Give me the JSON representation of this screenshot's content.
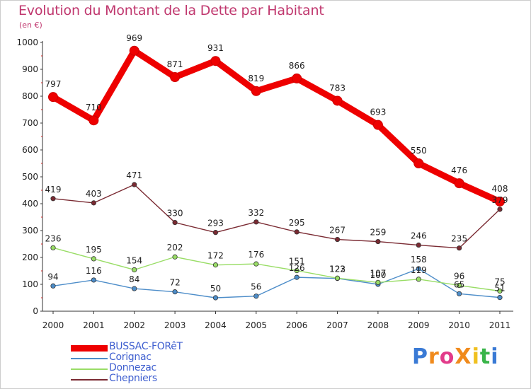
{
  "title": "Evolution du Montant de la Dette par Habitant",
  "subtitle": "(en €)",
  "logo": {
    "text": "ProXiti",
    "letters": [
      "P",
      "r",
      "o",
      "X",
      "i",
      "t",
      "i"
    ],
    "colors": [
      "#3a7ad5",
      "#f08a1c",
      "#e23b8a",
      "#f08a1c",
      "#f0c020",
      "#3ab54a",
      "#3a7ad5"
    ]
  },
  "chart_data": {
    "type": "line",
    "title": "Evolution du Montant de la Dette par Habitant",
    "ylabel": "(en €)",
    "xlabel": "",
    "x": [
      "2000",
      "2001",
      "2002",
      "2003",
      "2004",
      "2005",
      "2006",
      "2007",
      "2008",
      "2009",
      "2010",
      "2011"
    ],
    "ylim": [
      0,
      1000
    ],
    "yticks": [
      "0",
      "100",
      "200",
      "300",
      "400",
      "500",
      "600",
      "700",
      "800",
      "900",
      "1000"
    ],
    "grid": false,
    "legend_position": "bottom-left",
    "series": [
      {
        "name": "BUSSAC-FORêT",
        "color": "#ee0000",
        "values": [
          797,
          710,
          969,
          871,
          931,
          819,
          866,
          783,
          693,
          550,
          476,
          408
        ],
        "labels": [
          "797",
          "710",
          "969",
          "871",
          "931",
          "819",
          "866",
          "783",
          "693",
          "550",
          "476",
          "408"
        ]
      },
      {
        "name": "Corignac",
        "color": "#4d8dc9",
        "values": [
          94,
          116,
          84,
          72,
          50,
          56,
          126,
          122,
          100,
          158,
          65,
          51
        ],
        "labels": [
          "94",
          "116",
          "84",
          "72",
          "50",
          "56",
          "126",
          "122",
          "100",
          "158",
          "65",
          "51"
        ]
      },
      {
        "name": "Donnezac",
        "color": "#99dd66",
        "values": [
          236,
          195,
          154,
          202,
          172,
          176,
          151,
          123,
          107,
          119,
          96,
          75
        ],
        "labels": [
          "236",
          "195",
          "154",
          "202",
          "172",
          "176",
          "151",
          "123",
          "107",
          "119",
          "96",
          "75"
        ]
      },
      {
        "name": "Chepniers",
        "color": "#7a2a32",
        "values": [
          419,
          403,
          471,
          330,
          293,
          332,
          295,
          267,
          259,
          246,
          235,
          379
        ],
        "labels": [
          "419",
          "403",
          "471",
          "330",
          "293",
          "332",
          "295",
          "267",
          "259",
          "246",
          "235",
          "379"
        ]
      }
    ]
  }
}
